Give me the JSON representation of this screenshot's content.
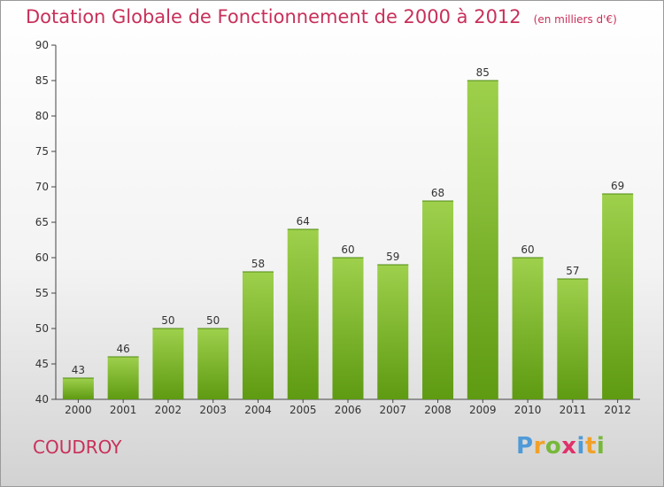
{
  "title": "Dotation Globale de Fonctionnement de 2000 à 2012",
  "unit": "(en milliers d'€)",
  "place": "COUDROY",
  "logo": {
    "p": "P",
    "r": "r",
    "o": "o",
    "x": "x",
    "i1": "i",
    "t": "t",
    "i2": "i"
  },
  "colors": {
    "bar_top": "#9ed04c",
    "bar_bottom": "#5e9a12",
    "title": "#c8305a"
  },
  "chart_data": {
    "type": "bar",
    "categories": [
      "2000",
      "2001",
      "2002",
      "2003",
      "2004",
      "2005",
      "2006",
      "2007",
      "2008",
      "2009",
      "2010",
      "2011",
      "2012"
    ],
    "values": [
      43,
      46,
      50,
      50,
      58,
      64,
      60,
      59,
      68,
      85,
      60,
      57,
      69
    ],
    "title": "Dotation Globale de Fonctionnement de 2000 à 2012",
    "subtitle": "(en milliers d'€)",
    "xlabel": "",
    "ylabel": "",
    "ylim": [
      40,
      90
    ],
    "yticks": [
      40,
      45,
      50,
      55,
      60,
      65,
      70,
      75,
      80,
      85,
      90
    ],
    "grid": false,
    "data_labels": true
  }
}
